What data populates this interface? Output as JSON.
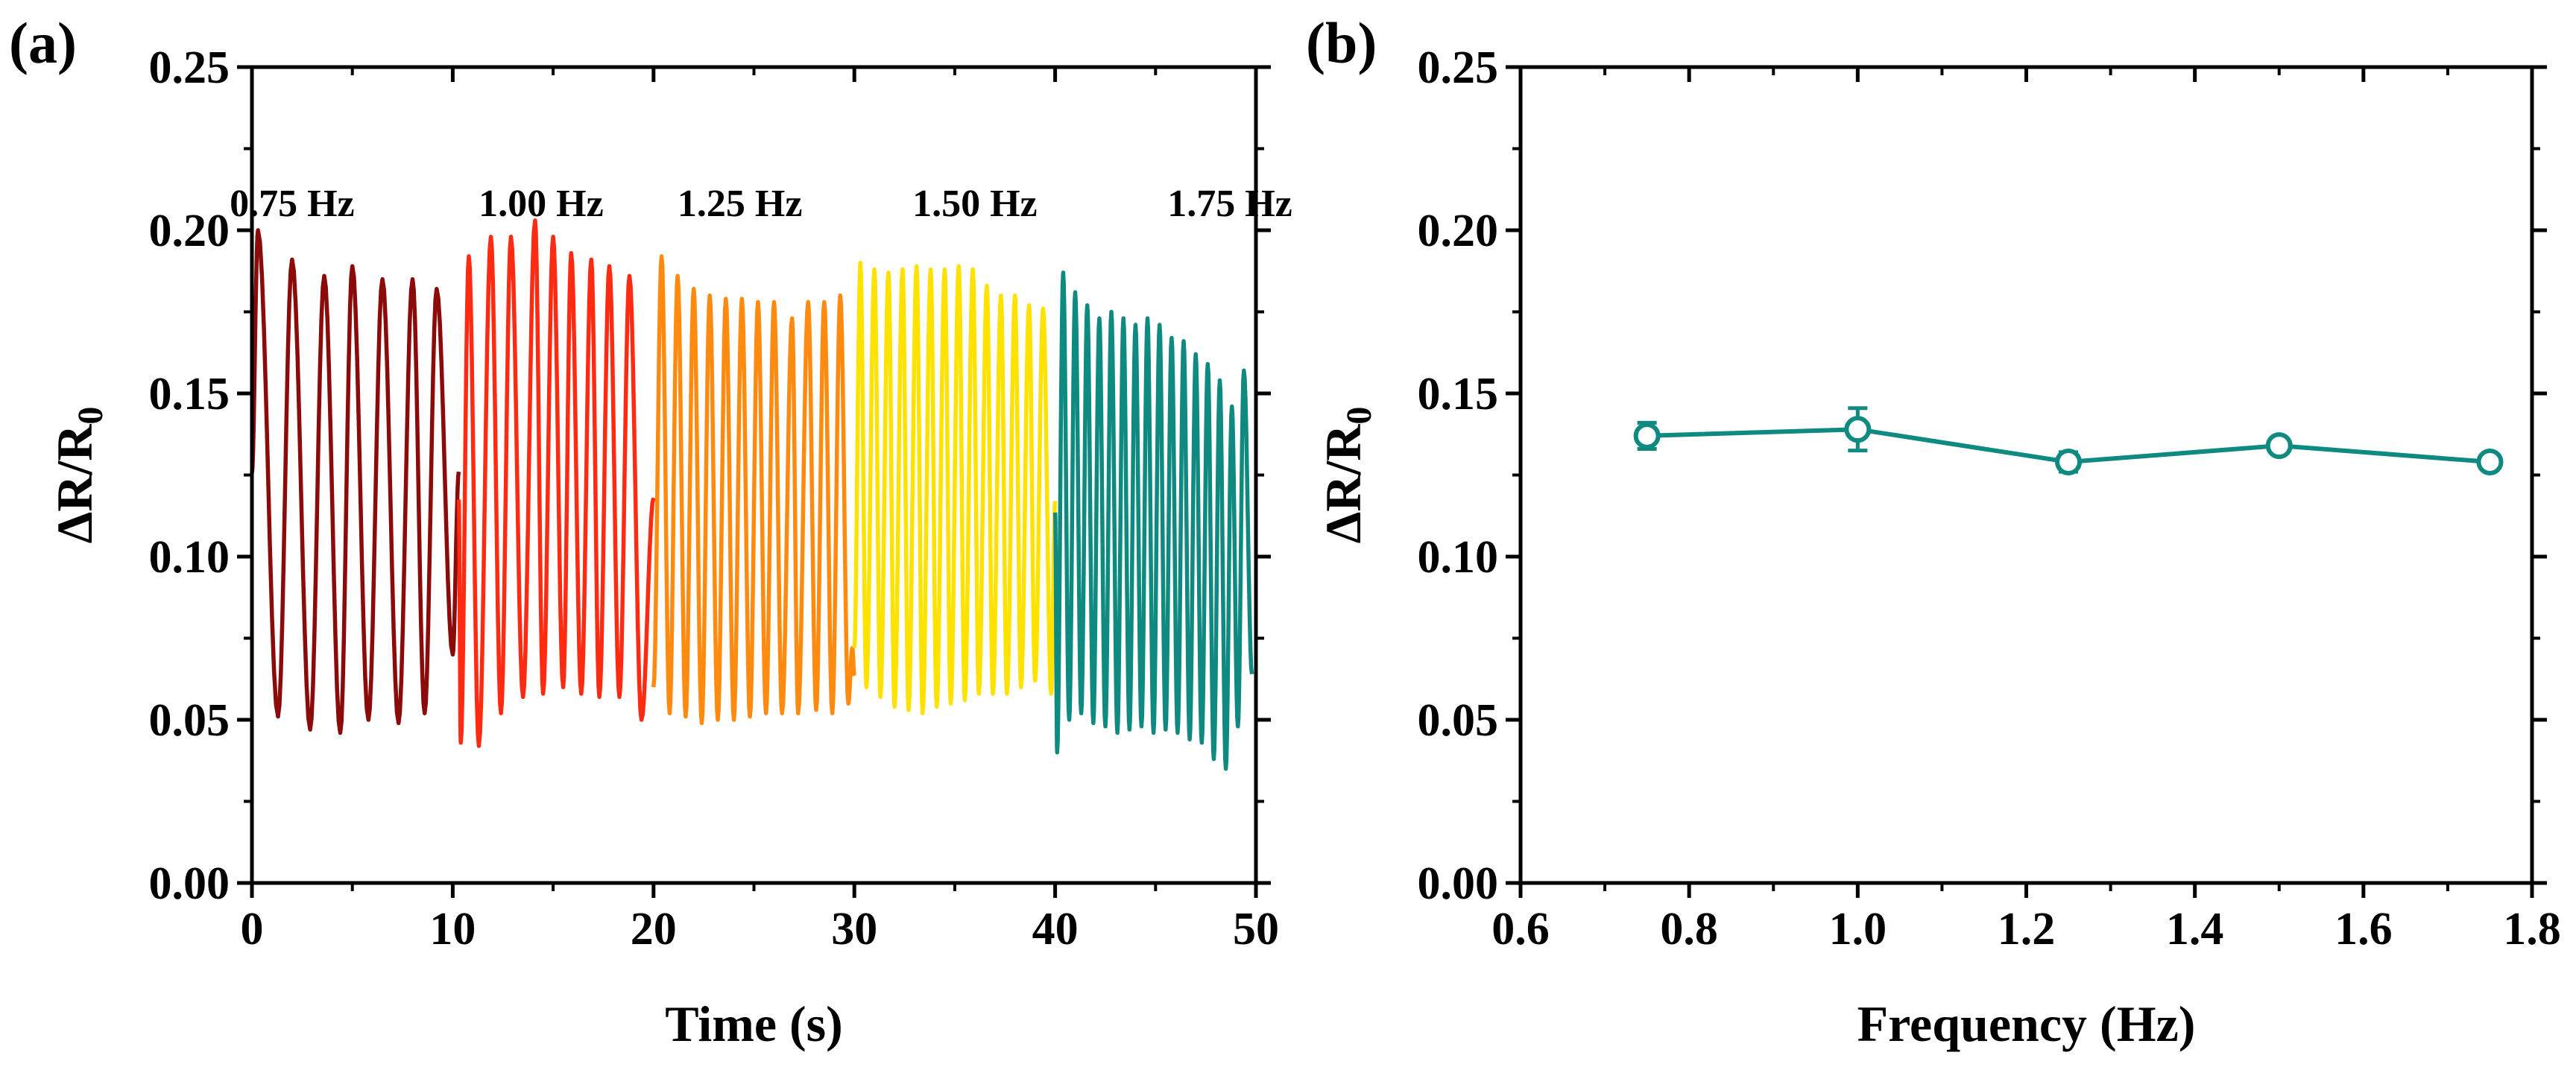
{
  "chart_data": [
    {
      "panel_label": "(a)",
      "type": "line",
      "title": "",
      "xlabel": "Time (s)",
      "ylabel_main": "ΔR/R",
      "ylabel_sub": "0",
      "xlim": [
        0,
        50
      ],
      "ylim": [
        0,
        0.25
      ],
      "x_ticks": [
        0,
        10,
        20,
        30,
        40,
        50
      ],
      "x_tick_labels": [
        "0",
        "10",
        "20",
        "30",
        "40",
        "50"
      ],
      "y_ticks": [
        0,
        0.05,
        0.1,
        0.15,
        0.2,
        0.25
      ],
      "y_tick_labels": [
        "0.00",
        "0.05",
        "0.10",
        "0.15",
        "0.20",
        "0.25"
      ],
      "grid": false,
      "series": [
        {
          "name": "0.75 Hz",
          "color": "#8b0a0a",
          "t_start": 0,
          "t_end": 10.3,
          "peaks": [
            [
              0.3,
              0.2
            ],
            [
              2.0,
              0.191
            ],
            [
              3.6,
              0.186
            ],
            [
              5.0,
              0.189
            ],
            [
              6.5,
              0.185
            ],
            [
              8.0,
              0.185
            ],
            [
              9.2,
              0.182
            ]
          ],
          "valleys": [
            [
              1.3,
              0.051
            ],
            [
              2.9,
              0.047
            ],
            [
              4.4,
              0.046
            ],
            [
              5.8,
              0.05
            ],
            [
              7.3,
              0.049
            ],
            [
              8.6,
              0.052
            ],
            [
              10.0,
              0.07
            ]
          ]
        },
        {
          "name": "1.00 Hz",
          "color": "#ff2a12",
          "t_start": 10.3,
          "t_end": 20.0,
          "peaks": [
            [
              10.8,
              0.192
            ],
            [
              11.9,
              0.198
            ],
            [
              12.9,
              0.198
            ],
            [
              14.1,
              0.203
            ],
            [
              15.0,
              0.198
            ],
            [
              15.9,
              0.193
            ],
            [
              16.9,
              0.191
            ],
            [
              17.8,
              0.189
            ],
            [
              18.8,
              0.186
            ]
          ],
          "valleys": [
            [
              10.4,
              0.043
            ],
            [
              11.3,
              0.042
            ],
            [
              12.4,
              0.052
            ],
            [
              13.5,
              0.057
            ],
            [
              14.5,
              0.058
            ],
            [
              15.5,
              0.06
            ],
            [
              16.4,
              0.058
            ],
            [
              17.3,
              0.057
            ],
            [
              18.3,
              0.057
            ],
            [
              19.4,
              0.05
            ]
          ]
        },
        {
          "name": "1.25 Hz",
          "color": "#ff8a10",
          "t_start": 20.0,
          "t_end": 30.0,
          "peaks": [
            [
              20.4,
              0.192
            ],
            [
              21.2,
              0.186
            ],
            [
              22.0,
              0.182
            ],
            [
              22.8,
              0.18
            ],
            [
              23.6,
              0.179
            ],
            [
              24.4,
              0.179
            ],
            [
              25.2,
              0.178
            ],
            [
              26.0,
              0.178
            ],
            [
              26.9,
              0.173
            ],
            [
              27.7,
              0.178
            ],
            [
              28.5,
              0.178
            ],
            [
              29.3,
              0.18
            ]
          ],
          "valleys": [
            [
              20.0,
              0.06
            ],
            [
              20.8,
              0.052
            ],
            [
              21.6,
              0.051
            ],
            [
              22.4,
              0.049
            ],
            [
              23.2,
              0.05
            ],
            [
              24.0,
              0.05
            ],
            [
              24.8,
              0.051
            ],
            [
              25.6,
              0.052
            ],
            [
              26.4,
              0.052
            ],
            [
              27.2,
              0.052
            ],
            [
              28.1,
              0.053
            ],
            [
              28.9,
              0.052
            ],
            [
              29.7,
              0.055
            ],
            [
              29.9,
              0.072
            ]
          ]
        },
        {
          "name": "1.50 Hz",
          "color": "#ffe200",
          "t_start": 30.0,
          "t_end": 40.0,
          "peaks": [
            [
              30.3,
              0.19
            ],
            [
              31.0,
              0.188
            ],
            [
              31.7,
              0.187
            ],
            [
              32.4,
              0.188
            ],
            [
              33.1,
              0.189
            ],
            [
              33.8,
              0.188
            ],
            [
              34.5,
              0.188
            ],
            [
              35.2,
              0.189
            ],
            [
              35.9,
              0.188
            ],
            [
              36.6,
              0.183
            ],
            [
              37.3,
              0.18
            ],
            [
              38.0,
              0.18
            ],
            [
              38.7,
              0.177
            ],
            [
              39.4,
              0.176
            ]
          ],
          "valleys": [
            [
              30.0,
              0.072
            ],
            [
              30.6,
              0.06
            ],
            [
              31.3,
              0.057
            ],
            [
              32.0,
              0.054
            ],
            [
              32.7,
              0.053
            ],
            [
              33.4,
              0.052
            ],
            [
              34.1,
              0.054
            ],
            [
              34.8,
              0.055
            ],
            [
              35.5,
              0.056
            ],
            [
              36.2,
              0.058
            ],
            [
              36.9,
              0.058
            ],
            [
              37.6,
              0.058
            ],
            [
              38.3,
              0.06
            ],
            [
              39.0,
              0.062
            ],
            [
              39.8,
              0.058
            ]
          ]
        },
        {
          "name": "1.75 Hz",
          "color": "#0e8a80",
          "t_start": 40.0,
          "t_end": 49.8,
          "peaks": [
            [
              40.4,
              0.187
            ],
            [
              41.0,
              0.181
            ],
            [
              41.6,
              0.177
            ],
            [
              42.2,
              0.173
            ],
            [
              42.8,
              0.175
            ],
            [
              43.4,
              0.173
            ],
            [
              44.0,
              0.171
            ],
            [
              44.6,
              0.173
            ],
            [
              45.2,
              0.171
            ],
            [
              45.8,
              0.167
            ],
            [
              46.4,
              0.166
            ],
            [
              47.0,
              0.162
            ],
            [
              47.6,
              0.159
            ],
            [
              48.2,
              0.154
            ],
            [
              48.8,
              0.146
            ],
            [
              49.4,
              0.157
            ]
          ],
          "valleys": [
            [
              40.1,
              0.04
            ],
            [
              40.7,
              0.05
            ],
            [
              41.3,
              0.052
            ],
            [
              41.9,
              0.049
            ],
            [
              42.5,
              0.048
            ],
            [
              43.1,
              0.046
            ],
            [
              43.7,
              0.047
            ],
            [
              44.3,
              0.048
            ],
            [
              44.9,
              0.046
            ],
            [
              45.5,
              0.047
            ],
            [
              46.1,
              0.046
            ],
            [
              46.7,
              0.044
            ],
            [
              47.3,
              0.043
            ],
            [
              47.9,
              0.038
            ],
            [
              48.5,
              0.035
            ],
            [
              49.1,
              0.048
            ],
            [
              49.8,
              0.064
            ]
          ]
        }
      ]
    },
    {
      "panel_label": "(b)",
      "type": "line",
      "title": "",
      "xlabel": "Frequency (Hz)",
      "ylabel_main": "ΔR/R",
      "ylabel_sub": "0",
      "xlim": [
        0.6,
        1.8
      ],
      "ylim": [
        0,
        0.25
      ],
      "x_ticks": [
        0.6,
        0.8,
        1.0,
        1.2,
        1.4,
        1.6,
        1.8
      ],
      "x_tick_labels": [
        "0.6",
        "0.8",
        "1.0",
        "1.2",
        "1.4",
        "1.6",
        "1.8"
      ],
      "y_ticks": [
        0,
        0.05,
        0.1,
        0.15,
        0.2,
        0.25
      ],
      "y_tick_labels": [
        "0.00",
        "0.05",
        "0.10",
        "0.15",
        "0.20",
        "0.25"
      ],
      "grid": false,
      "series": [
        {
          "name": "ΔR/R0",
          "color": "#0e8a80",
          "x": [
            0.75,
            1.0,
            1.25,
            1.5,
            1.75
          ],
          "y": [
            0.137,
            0.139,
            0.129,
            0.134,
            0.129
          ],
          "err": [
            0.004,
            0.0065,
            0.003,
            0.002,
            0.002
          ]
        }
      ]
    }
  ]
}
